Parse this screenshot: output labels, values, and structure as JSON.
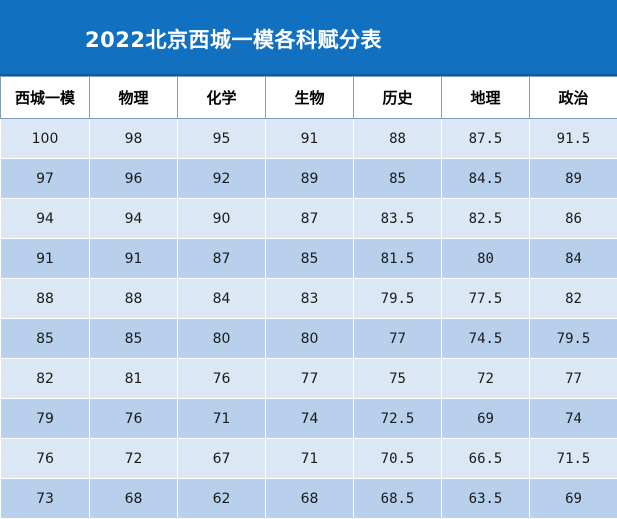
{
  "title": "2022北京西城一模各科赋分表",
  "table": {
    "headers": [
      "西城一模",
      "物理",
      "化学",
      "生物",
      "历史",
      "地理",
      "政治"
    ],
    "rows": [
      [
        "100",
        "98",
        "95",
        "91",
        "88",
        "87.5",
        "91.5"
      ],
      [
        "97",
        "96",
        "92",
        "89",
        "85",
        "84.5",
        "89"
      ],
      [
        "94",
        "94",
        "90",
        "87",
        "83.5",
        "82.5",
        "86"
      ],
      [
        "91",
        "91",
        "87",
        "85",
        "81.5",
        "80",
        "84"
      ],
      [
        "88",
        "88",
        "84",
        "83",
        "79.5",
        "77.5",
        "82"
      ],
      [
        "85",
        "85",
        "80",
        "80",
        "77",
        "74.5",
        "79.5"
      ],
      [
        "82",
        "81",
        "76",
        "77",
        "75",
        "72",
        "77"
      ],
      [
        "79",
        "76",
        "71",
        "74",
        "72.5",
        "69",
        "74"
      ],
      [
        "76",
        "72",
        "67",
        "71",
        "70.5",
        "66.5",
        "71.5"
      ],
      [
        "73",
        "68",
        "62",
        "68",
        "68.5",
        "63.5",
        "69"
      ]
    ]
  },
  "colors": {
    "title_bar": "#1170c0",
    "row_light": "#dbe7f4",
    "row_dark": "#b8d0ec"
  }
}
